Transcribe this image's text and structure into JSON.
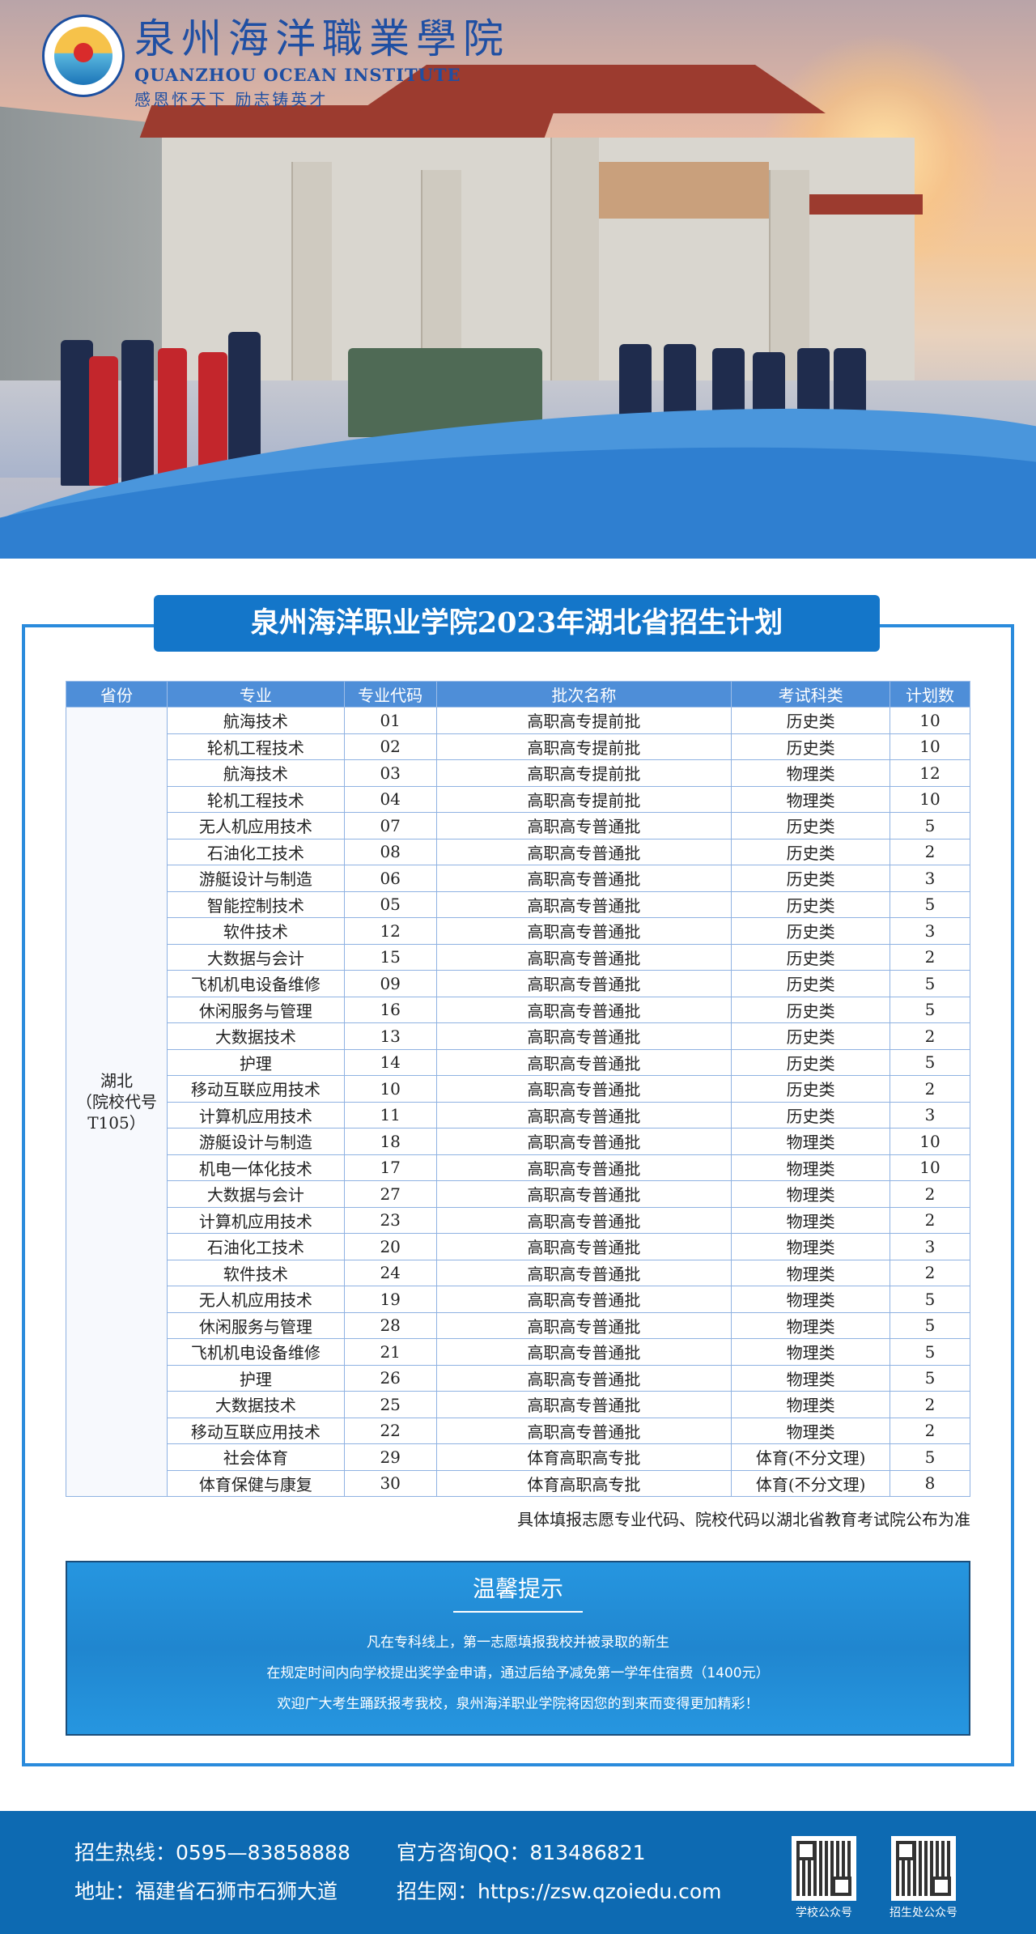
{
  "brand": {
    "name_cn": "泉州海洋職業學院",
    "name_en": "QUANZHOU OCEAN INSTITUTE",
    "motto": "感恩怀天下  励志铸英才",
    "colors": {
      "primary": "#1476c9",
      "header": "#4e8ed8",
      "footer": "#0d6ab2"
    }
  },
  "title": "泉州海洋职业学院2023年湖北省招生计划",
  "table": {
    "headers": [
      "省份",
      "专业",
      "专业代码",
      "批次名称",
      "考试科类",
      "计划数"
    ],
    "province": "湖北\n（院校代号T105）",
    "rows": [
      [
        "航海技术",
        "01",
        "高职高专提前批",
        "历史类",
        "10"
      ],
      [
        "轮机工程技术",
        "02",
        "高职高专提前批",
        "历史类",
        "10"
      ],
      [
        "航海技术",
        "03",
        "高职高专提前批",
        "物理类",
        "12"
      ],
      [
        "轮机工程技术",
        "04",
        "高职高专提前批",
        "物理类",
        "10"
      ],
      [
        "无人机应用技术",
        "07",
        "高职高专普通批",
        "历史类",
        "5"
      ],
      [
        "石油化工技术",
        "08",
        "高职高专普通批",
        "历史类",
        "2"
      ],
      [
        "游艇设计与制造",
        "06",
        "高职高专普通批",
        "历史类",
        "3"
      ],
      [
        "智能控制技术",
        "05",
        "高职高专普通批",
        "历史类",
        "5"
      ],
      [
        "软件技术",
        "12",
        "高职高专普通批",
        "历史类",
        "3"
      ],
      [
        "大数据与会计",
        "15",
        "高职高专普通批",
        "历史类",
        "2"
      ],
      [
        "飞机机电设备维修",
        "09",
        "高职高专普通批",
        "历史类",
        "5"
      ],
      [
        "休闲服务与管理",
        "16",
        "高职高专普通批",
        "历史类",
        "5"
      ],
      [
        "大数据技术",
        "13",
        "高职高专普通批",
        "历史类",
        "2"
      ],
      [
        "护理",
        "14",
        "高职高专普通批",
        "历史类",
        "5"
      ],
      [
        "移动互联应用技术",
        "10",
        "高职高专普通批",
        "历史类",
        "2"
      ],
      [
        "计算机应用技术",
        "11",
        "高职高专普通批",
        "历史类",
        "3"
      ],
      [
        "游艇设计与制造",
        "18",
        "高职高专普通批",
        "物理类",
        "10"
      ],
      [
        "机电一体化技术",
        "17",
        "高职高专普通批",
        "物理类",
        "10"
      ],
      [
        "大数据与会计",
        "27",
        "高职高专普通批",
        "物理类",
        "2"
      ],
      [
        "计算机应用技术",
        "23",
        "高职高专普通批",
        "物理类",
        "2"
      ],
      [
        "石油化工技术",
        "20",
        "高职高专普通批",
        "物理类",
        "3"
      ],
      [
        "软件技术",
        "24",
        "高职高专普通批",
        "物理类",
        "2"
      ],
      [
        "无人机应用技术",
        "19",
        "高职高专普通批",
        "物理类",
        "5"
      ],
      [
        "休闲服务与管理",
        "28",
        "高职高专普通批",
        "物理类",
        "5"
      ],
      [
        "飞机机电设备维修",
        "21",
        "高职高专普通批",
        "物理类",
        "5"
      ],
      [
        "护理",
        "26",
        "高职高专普通批",
        "物理类",
        "5"
      ],
      [
        "大数据技术",
        "25",
        "高职高专普通批",
        "物理类",
        "2"
      ],
      [
        "移动互联应用技术",
        "22",
        "高职高专普通批",
        "物理类",
        "2"
      ],
      [
        "社会体育",
        "29",
        "体育高职高专批",
        "体育(不分文理)",
        "5"
      ],
      [
        "体育保健与康复",
        "30",
        "体育高职高专批",
        "体育(不分文理)",
        "8"
      ]
    ]
  },
  "note": "具体填报志愿专业代码、院校代码以湖北省教育考试院公布为准",
  "tips": {
    "heading": "温馨提示",
    "lines": [
      "凡在专科线上，第一志愿填报我校并被录取的新生",
      "在规定时间内向学校提出奖学金申请，通过后给予减免第一学年住宿费（1400元）",
      "欢迎广大考生踊跃报考我校，泉州海洋职业学院将因您的到来而变得更加精彩！"
    ]
  },
  "footer": {
    "hotline": "招生热线：0595—83858888",
    "qq": "官方咨询QQ：813486821",
    "address": "地址：福建省石狮市石狮大道",
    "website": "招生网：https://zsw.qzoiedu.com",
    "qr1_label": "学校公众号",
    "qr2_label": "招生处公众号"
  }
}
